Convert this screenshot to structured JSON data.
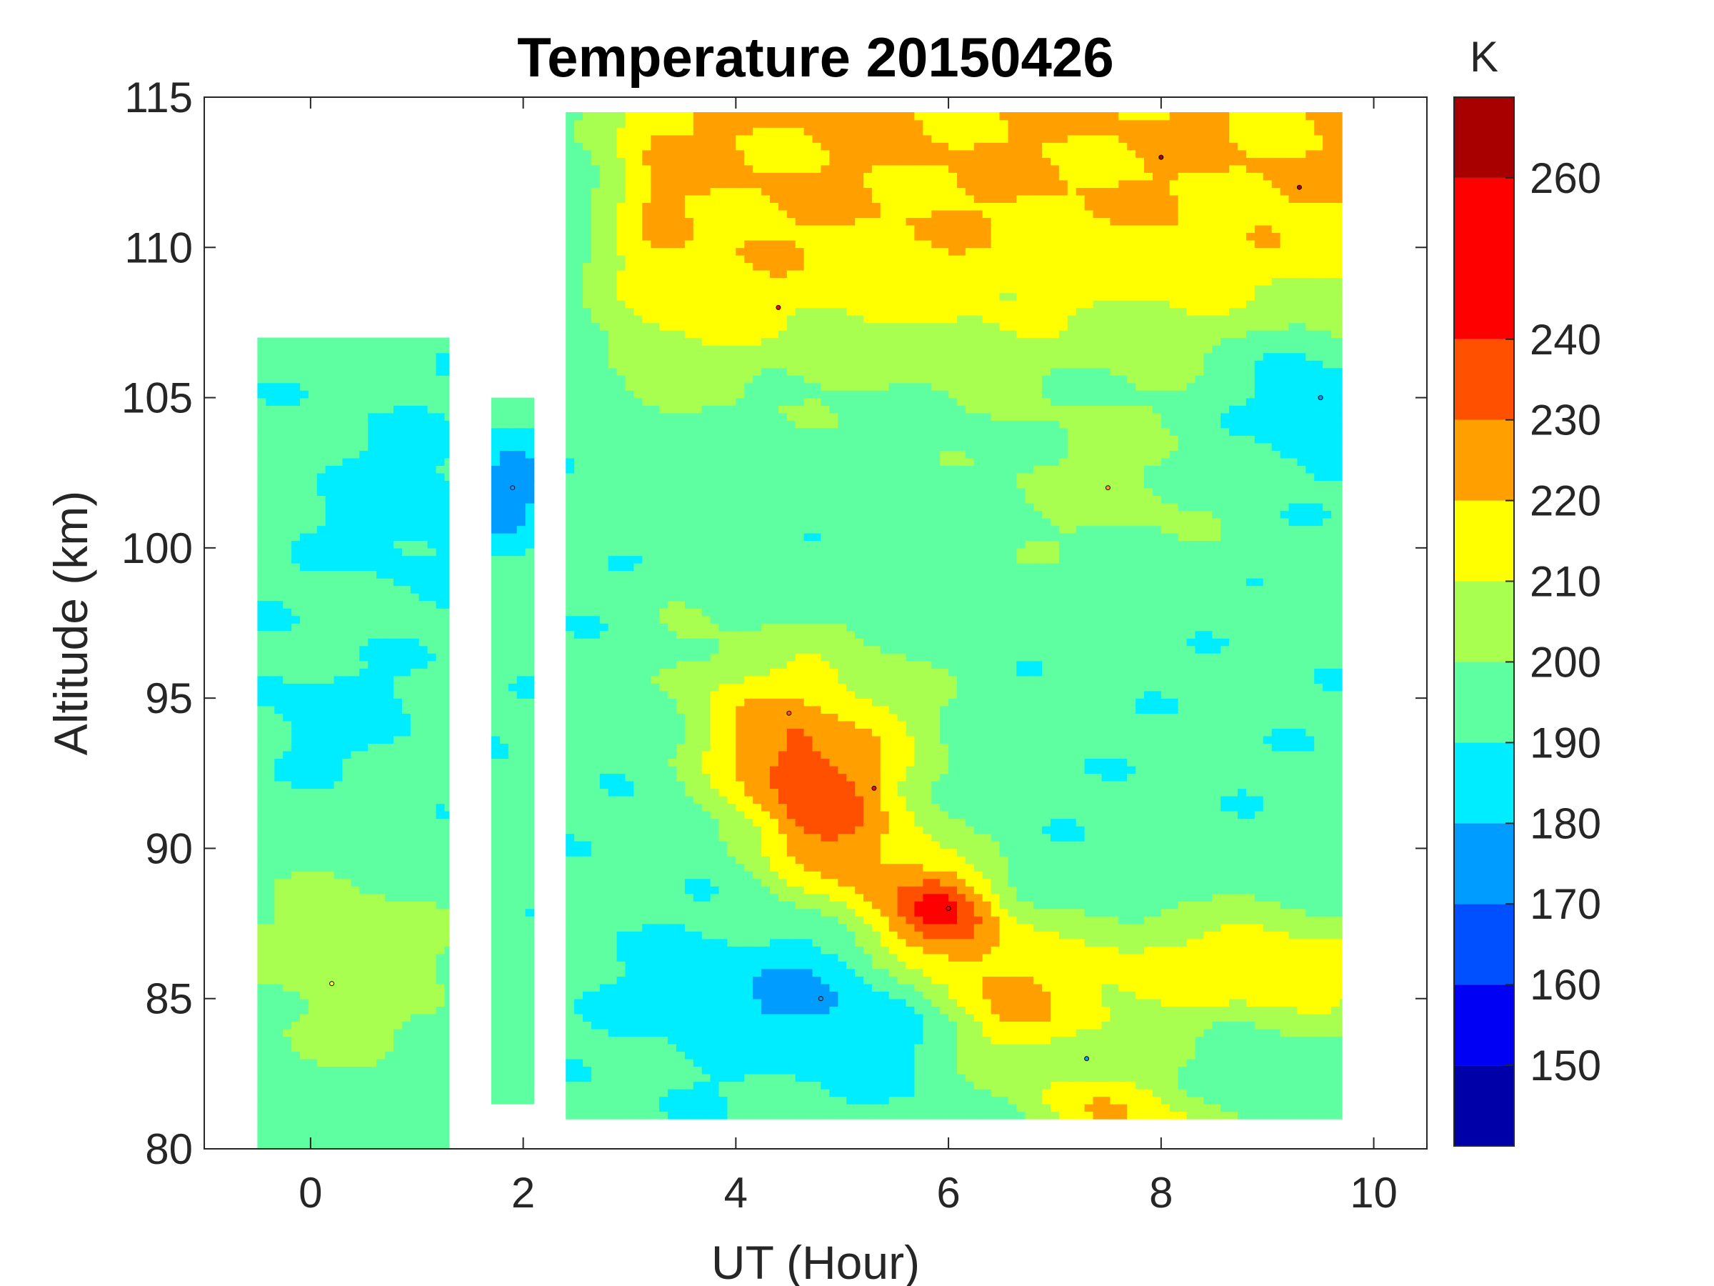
{
  "chart_data": {
    "type": "heatmap",
    "subtype": "filled-contour",
    "title": "Temperature 20150426",
    "xlabel": "UT (Hour)",
    "ylabel": "Altitude (km)",
    "xlim": [
      -1,
      10.5
    ],
    "ylim": [
      80,
      115
    ],
    "xticks": [
      0,
      2,
      4,
      6,
      8,
      10
    ],
    "yticks": [
      80,
      85,
      90,
      95,
      100,
      105,
      110,
      115
    ],
    "colorbar": {
      "unit": "K",
      "range": [
        140,
        270
      ],
      "levels": [
        150,
        160,
        170,
        180,
        190,
        200,
        210,
        220,
        230,
        240,
        260
      ],
      "labels": [
        "150",
        "160",
        "170",
        "180",
        "190",
        "200",
        "210",
        "220",
        "230",
        "240",
        "260"
      ],
      "colors": [
        "#0000a8",
        "#0000f5",
        "#0050ff",
        "#009cff",
        "#00ecff",
        "#5effa0",
        "#a8ff50",
        "#ffff00",
        "#ffa000",
        "#ff5000",
        "#ff0000",
        "#a80000"
      ]
    },
    "coverage": [
      {
        "x": [
          -0.5,
          1.3
        ],
        "alt": [
          80,
          107
        ]
      },
      {
        "x": [
          1.7,
          2.1
        ],
        "alt": [
          81.5,
          105
        ]
      },
      {
        "x": [
          2.4,
          9.7
        ],
        "alt": [
          81,
          114.5
        ]
      }
    ],
    "features": [
      {
        "ut": 5.3,
        "alt": 92,
        "temperature": 250
      },
      {
        "ut": 6.0,
        "alt": 88,
        "temperature": 250
      },
      {
        "ut": 8.0,
        "alt": 113,
        "temperature": 265
      },
      {
        "ut": 9.3,
        "alt": 112,
        "temperature": 265
      },
      {
        "ut": 4.4,
        "alt": 108,
        "temperature": 245
      },
      {
        "ut": 4.8,
        "alt": 85,
        "temperature": 175
      },
      {
        "ut": 9.5,
        "alt": 105,
        "temperature": 175
      },
      {
        "ut": 1.9,
        "alt": 102,
        "temperature": 170
      },
      {
        "ut": 7.3,
        "alt": 83,
        "temperature": 170
      },
      {
        "ut": 0.2,
        "alt": 85.5,
        "temperature": 215
      },
      {
        "ut": 4.5,
        "alt": 94.5,
        "temperature": 235
      },
      {
        "ut": 7.5,
        "alt": 102,
        "temperature": 225
      }
    ]
  }
}
